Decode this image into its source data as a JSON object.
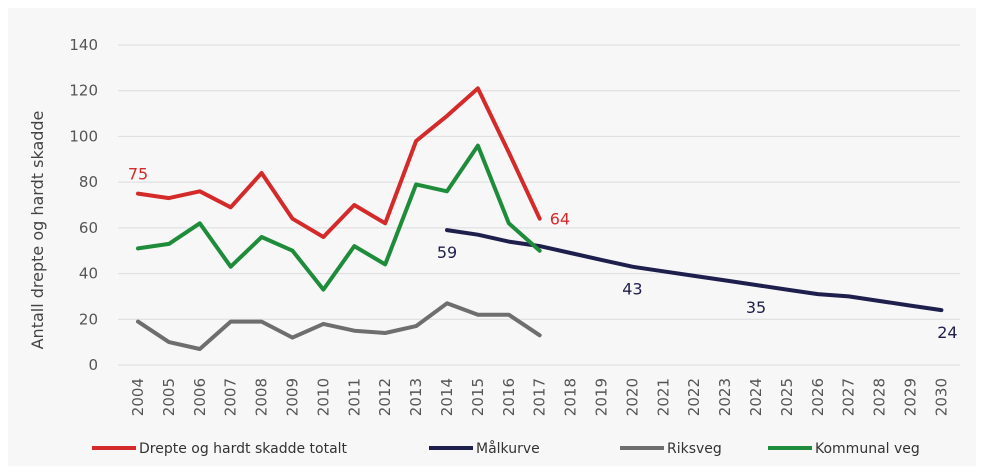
{
  "chart_data": {
    "type": "line",
    "ylabel": "Antall drepte og hardt skadde",
    "xlabel": "",
    "ylim": [
      0,
      140
    ],
    "yticks": [
      0,
      20,
      40,
      60,
      80,
      100,
      120,
      140
    ],
    "x": [
      "2004",
      "2005",
      "2006",
      "2007",
      "2008",
      "2009",
      "2010",
      "2011",
      "2012",
      "2013",
      "2014",
      "2015",
      "2016",
      "2017",
      "2018",
      "2019",
      "2020",
      "2021",
      "2022",
      "2023",
      "2024",
      "2025",
      "2026",
      "2027",
      "2028",
      "2029",
      "2030"
    ],
    "grid": true,
    "legend_position": "bottom",
    "series": [
      {
        "name": "Drepte og hardt skadde totalt",
        "color": "#d42a2a",
        "x": [
          "2004",
          "2005",
          "2006",
          "2007",
          "2008",
          "2009",
          "2010",
          "2011",
          "2012",
          "2013",
          "2014",
          "2015",
          "2016",
          "2017"
        ],
        "values": [
          75,
          73,
          76,
          69,
          84,
          64,
          56,
          70,
          62,
          98,
          109,
          121,
          93,
          64
        ]
      },
      {
        "name": "Målkurve",
        "color": "#1f1f4d",
        "x": [
          "2014",
          "2015",
          "2016",
          "2017",
          "2018",
          "2019",
          "2020",
          "2021",
          "2022",
          "2023",
          "2024",
          "2025",
          "2026",
          "2027",
          "2028",
          "2029",
          "2030"
        ],
        "values": [
          59,
          57,
          54,
          52,
          49,
          46,
          43,
          41,
          39,
          37,
          35,
          33,
          31,
          30,
          28,
          26,
          24
        ]
      },
      {
        "name": "Riksveg",
        "color": "#6e6e6e",
        "x": [
          "2004",
          "2005",
          "2006",
          "2007",
          "2008",
          "2009",
          "2010",
          "2011",
          "2012",
          "2013",
          "2014",
          "2015",
          "2016",
          "2017"
        ],
        "values": [
          19,
          10,
          7,
          19,
          19,
          12,
          18,
          15,
          14,
          17,
          27,
          22,
          22,
          13
        ]
      },
      {
        "name": "Kommunal veg",
        "color": "#1e8c3a",
        "x": [
          "2004",
          "2005",
          "2006",
          "2007",
          "2008",
          "2009",
          "2010",
          "2011",
          "2012",
          "2013",
          "2014",
          "2015",
          "2016",
          "2017"
        ],
        "values": [
          51,
          53,
          62,
          43,
          56,
          50,
          33,
          52,
          44,
          79,
          76,
          96,
          62,
          50
        ]
      }
    ],
    "annotations": [
      {
        "text": "75",
        "x": "2004",
        "value": 75,
        "color": "#d42a2a",
        "position": "above"
      },
      {
        "text": "64",
        "x": "2017",
        "value": 64,
        "color": "#d42a2a",
        "position": "right"
      },
      {
        "text": "59",
        "x": "2014",
        "value": 59,
        "color": "#1f1f4d",
        "position": "below"
      },
      {
        "text": "43",
        "x": "2020",
        "value": 43,
        "color": "#1f1f4d",
        "position": "below"
      },
      {
        "text": "35",
        "x": "2024",
        "value": 35,
        "color": "#1f1f4d",
        "position": "below"
      },
      {
        "text": "24",
        "x": "2030",
        "value": 24,
        "color": "#1f1f4d",
        "position": "below"
      }
    ]
  }
}
